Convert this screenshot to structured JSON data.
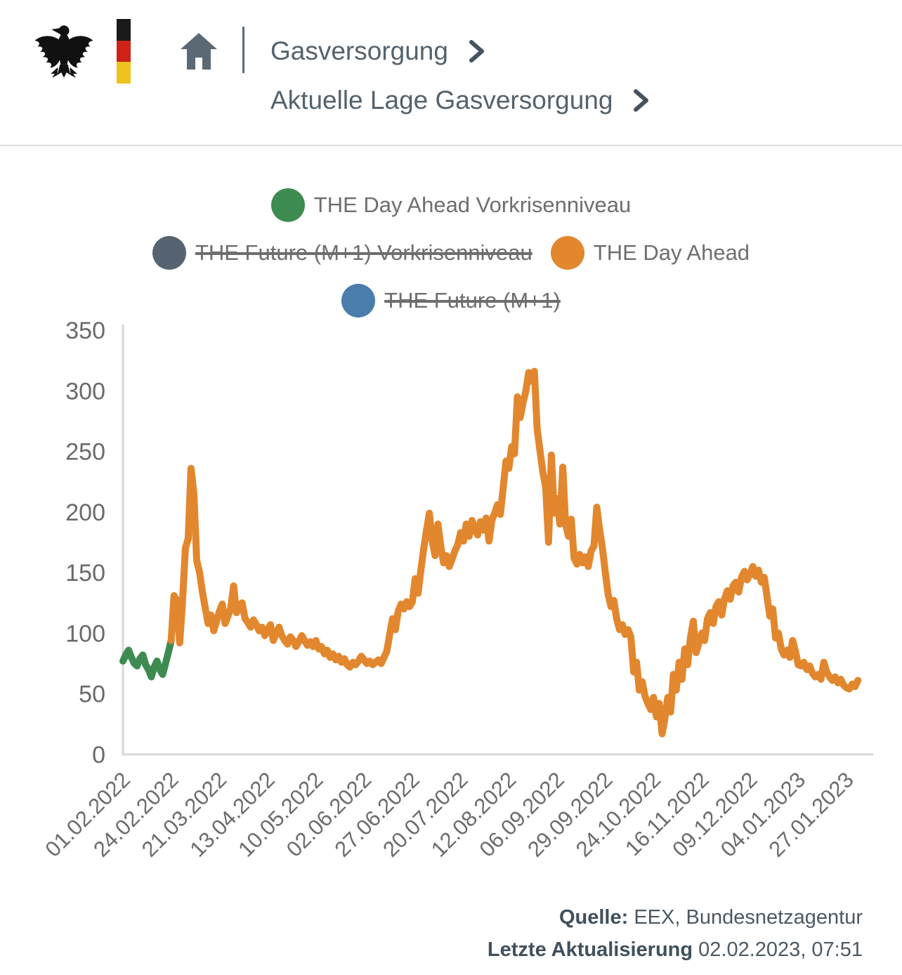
{
  "header": {
    "logo": {
      "eagle_icon": "bundesadler-eagle",
      "flag_colors": [
        "#1a1a1a",
        "#cf2318",
        "#eec31e"
      ]
    },
    "breadcrumb": [
      {
        "label": "Gasversorgung"
      },
      {
        "label": "Aktuelle Lage Gasversorgung"
      }
    ]
  },
  "legend": {
    "items": [
      {
        "label": "THE Day Ahead Vorkrisenniveau",
        "color": "#3d8b50",
        "struck": false
      },
      {
        "label": "THE Future (M+1) Vorkrisenniveau",
        "color": "#566471",
        "struck": true
      },
      {
        "label": "THE Day Ahead",
        "color": "#e2872e",
        "struck": false
      },
      {
        "label": "THE Future (M+1)",
        "color": "#4a7dab",
        "struck": true
      }
    ]
  },
  "chart_data": {
    "type": "line",
    "title": "",
    "xlabel": "",
    "ylabel": "",
    "ylim": [
      0,
      350
    ],
    "yticks": [
      0,
      50,
      100,
      150,
      200,
      250,
      300,
      350
    ],
    "grid": false,
    "legend_position": "top",
    "x_tick_labels": [
      "01.02.2022",
      "24.02.2022",
      "21.03.2022",
      "13.04.2022",
      "10.05.2022",
      "02.06.2022",
      "27.06.2022",
      "20.07.2022",
      "12.08.2022",
      "06.09.2022",
      "29.09.2022",
      "24.10.2022",
      "16.11.2022",
      "09.12.2022",
      "04.01.2023",
      "27.01.2023"
    ],
    "x_tick_interval_points": 17,
    "total_points": 260,
    "series": [
      {
        "name": "THE Day Ahead Vorkrisenniveau",
        "color": "#3d8b50",
        "hidden": false,
        "start_index": 0,
        "values": [
          77,
          82,
          86,
          80,
          75,
          73,
          79,
          82,
          74,
          70,
          64,
          72,
          77,
          70,
          66,
          75,
          84,
          94
        ]
      },
      {
        "name": "THE Day Ahead",
        "color": "#e2872e",
        "hidden": false,
        "start_index": 17,
        "values": [
          94,
          131,
          127,
          92,
          126,
          170,
          178,
          236,
          215,
          160,
          150,
          134,
          121,
          108,
          115,
          102,
          110,
          118,
          124,
          108,
          114,
          121,
          139,
          117,
          122,
          125,
          112,
          109,
          105,
          111,
          107,
          102,
          105,
          98,
          103,
          107,
          94,
          100,
          105,
          98,
          94,
          91,
          97,
          94,
          89,
          93,
          98,
          94,
          90,
          93,
          89,
          94,
          87,
          89,
          83,
          86,
          80,
          83,
          78,
          81,
          76,
          79,
          74,
          72,
          76,
          74,
          77,
          81,
          78,
          75,
          77,
          74,
          76,
          78,
          75,
          80,
          85,
          99,
          112,
          103,
          118,
          124,
          120,
          126,
          122,
          126,
          145,
          133,
          152,
          170,
          185,
          199,
          176,
          164,
          190,
          172,
          158,
          164,
          155,
          161,
          168,
          173,
          183,
          176,
          190,
          180,
          193,
          186,
          181,
          192,
          185,
          195,
          176,
          193,
          199,
          206,
          198,
          220,
          242,
          236,
          254,
          248,
          295,
          278,
          290,
          300,
          315,
          308,
          316,
          268,
          250,
          233,
          220,
          175,
          247,
          199,
          211,
          190,
          237,
          190,
          180,
          194,
          162,
          157,
          165,
          158,
          163,
          155,
          168,
          172,
          204,
          185,
          170,
          150,
          132,
          122,
          127,
          112,
          103,
          107,
          99,
          103,
          97,
          68,
          76,
          53,
          60,
          48,
          42,
          37,
          47,
          31,
          42,
          17,
          30,
          47,
          35,
          66,
          53,
          76,
          62,
          87,
          74,
          96,
          110,
          84,
          92,
          100,
          94,
          112,
          117,
          108,
          122,
          126,
          115,
          128,
          135,
          128,
          139,
          142,
          134,
          146,
          151,
          144,
          149,
          155,
          147,
          152,
          142,
          146,
          130,
          114,
          120,
          96,
          100,
          87,
          82,
          86,
          80,
          94,
          85,
          74,
          73,
          76,
          70,
          73,
          67,
          64,
          66,
          62,
          76,
          68,
          64,
          61,
          64,
          59,
          62,
          57,
          55,
          54,
          58,
          56,
          61
        ]
      },
      {
        "name": "THE Future (M+1) Vorkrisenniveau",
        "color": "#566471",
        "hidden": true,
        "start_index": 0,
        "values": []
      },
      {
        "name": "THE Future (M+1)",
        "color": "#4a7dab",
        "hidden": true,
        "start_index": 0,
        "values": []
      }
    ]
  },
  "footer": {
    "source_label": "Quelle:",
    "source_value": "EEX, Bundesnetzagentur",
    "updated_label": "Letzte Aktualisierung",
    "updated_value": "02.02.2023, 07:51"
  }
}
